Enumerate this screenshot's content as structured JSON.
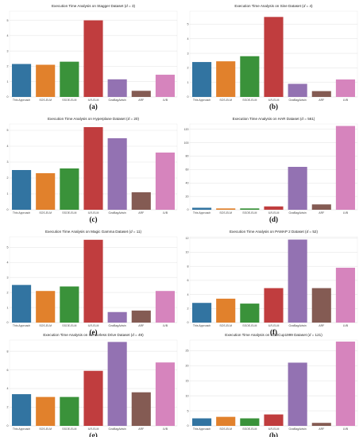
{
  "chart_data": [
    {
      "type": "bar",
      "title": "Execution Time Analysis on Stagger Dataset (d = 3)",
      "categories": [
        "This Approach",
        "SOS-ELM",
        "SSOE-ELM",
        "ILR-ELM",
        "OzaBagAdwin",
        "ARF",
        "LVB"
      ],
      "values": [
        2.15,
        2.1,
        2.3,
        5.0,
        1.15,
        0.4,
        1.45
      ],
      "ylim": [
        0,
        5.6
      ],
      "yticks": [
        0,
        1,
        2,
        3,
        4,
        5
      ],
      "label": "(a)"
    },
    {
      "type": "bar",
      "title": "Execution Time Analysis on Sine Dataset (d = 4)",
      "categories": [
        "This Approach",
        "SOS-ELM",
        "SSOE-ELM",
        "ILR-ELM",
        "OzaBagAdwin",
        "ARF",
        "LVB"
      ],
      "values": [
        2.4,
        2.45,
        2.8,
        5.5,
        0.9,
        0.4,
        1.2
      ],
      "ylim": [
        0,
        5.9
      ],
      "yticks": [
        0,
        1,
        2,
        3,
        4,
        5
      ],
      "label": "(b)"
    },
    {
      "type": "bar",
      "title": "Execution Time Analysis on Hyperplane Dataset (d = 20)",
      "categories": [
        "This Approach",
        "SOS-ELM",
        "SSOE-ELM",
        "ILR-ELM",
        "OzaBagAdwin",
        "ARF",
        "LVB"
      ],
      "values": [
        2.5,
        2.3,
        2.6,
        5.2,
        4.5,
        1.1,
        3.6
      ],
      "ylim": [
        0,
        5.4
      ],
      "yticks": [
        0,
        1,
        2,
        3,
        4,
        5
      ],
      "label": "(c)"
    },
    {
      "type": "bar",
      "title": "Execution Time Analysis on HAR Dataset (d = 561)",
      "categories": [
        "This Approach",
        "SOS-ELM",
        "SSOE-ELM",
        "ILR-ELM",
        "OzaBagAdwin",
        "ARF",
        "LVB"
      ],
      "values": [
        3,
        2,
        2,
        5,
        64,
        8,
        125
      ],
      "ylim": [
        0,
        128
      ],
      "yticks": [
        0,
        20,
        40,
        60,
        80,
        100,
        120
      ],
      "label": "(d)"
    },
    {
      "type": "bar",
      "title": "Execution Time Analysis on Magic Gamma Dataset (d = 11)",
      "categories": [
        "This Approach",
        "SOS-ELM",
        "SSOE-ELM",
        "ILR-ELM",
        "OzaBagAdwin",
        "ARF",
        "LVB"
      ],
      "values": [
        2.5,
        2.1,
        2.4,
        5.5,
        0.7,
        0.8,
        2.1
      ],
      "ylim": [
        0,
        5.7
      ],
      "yticks": [
        0,
        1,
        2,
        3,
        4,
        5
      ],
      "label": "(e)"
    },
    {
      "type": "bar",
      "title": "Execution Time Analysis on PAMAP 2 Dataset (d = 52)",
      "categories": [
        "This Approach",
        "SOS-ELM",
        "SSOE-ELM",
        "ILR-ELM",
        "OzaBagAdwin",
        "ARF",
        "LVB"
      ],
      "values": [
        2.8,
        3.4,
        2.7,
        4.9,
        11.8,
        4.9,
        7.8
      ],
      "ylim": [
        0,
        12.2
      ],
      "yticks": [
        0,
        2,
        4,
        6,
        8,
        10,
        12
      ],
      "label": "(f)"
    },
    {
      "type": "bar",
      "title": "Execution Time Analysis on Sensorless Drive Dataset (d = 49)",
      "categories": [
        "This Approach",
        "SOS-ELM",
        "SSOE-ELM",
        "ILR-ELM",
        "OzaBagAdwin",
        "ARF",
        "LVB"
      ],
      "values": [
        3.4,
        3.1,
        3.1,
        5.9,
        9.0,
        3.6,
        6.8
      ],
      "ylim": [
        0,
        9.2
      ],
      "yticks": [
        0,
        2,
        4,
        6,
        8
      ],
      "label": "(g)"
    },
    {
      "type": "bar",
      "title": "Execution Time Analysis on KDDCup1999 Dataset (d = 121)",
      "categories": [
        "This Approach",
        "SOS-ELM",
        "SSOE-ELM",
        "ILR-ELM",
        "OzaBagAdwin",
        "ARF",
        "LVB"
      ],
      "values": [
        2.5,
        3.0,
        2.5,
        3.8,
        21,
        1,
        28
      ],
      "ylim": [
        0,
        28.5
      ],
      "yticks": [
        0,
        5,
        10,
        15,
        20,
        25
      ],
      "label": "(h)"
    }
  ],
  "colors": [
    "#3274a1",
    "#e1812c",
    "#3a923a",
    "#c03d3e",
    "#9372b2",
    "#845b53",
    "#d684bd"
  ]
}
